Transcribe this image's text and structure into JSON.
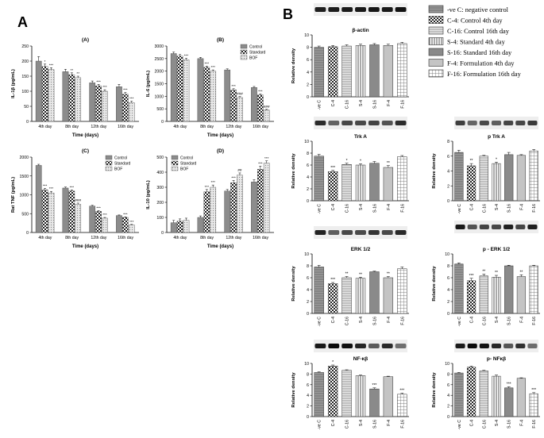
{
  "figure": {
    "panel_a_label": "A",
    "panel_b_label": "B"
  },
  "colors": {
    "control": "#8c8c8c",
    "standard": "#ffffff",
    "bof": "#d9d9d9",
    "axis": "#000000"
  },
  "legend_b": {
    "items": [
      {
        "label": "-ve C: negative control",
        "pattern": "hatch-h"
      },
      {
        "label": "C-4: Control 4th day",
        "pattern": "check"
      },
      {
        "label": "C-16: Control 16th day",
        "pattern": "hatch-h-light"
      },
      {
        "label": "S-4: Standard 4th day",
        "pattern": "vlines"
      },
      {
        "label": "S-16: Standard 16th day",
        "pattern": "gray"
      },
      {
        "label": "F-4: Formulation 4th day",
        "pattern": "lightgray"
      },
      {
        "label": "F-16: Formulation 16th day",
        "pattern": "grid"
      }
    ]
  },
  "chart_data": [
    {
      "id": "A-A",
      "type": "bar",
      "title": "(A)",
      "ylabel": "IL-1β (pg/mL)",
      "xlabel": "Time (days)",
      "categories": [
        "4th day",
        "8th day",
        "12th day",
        "16th day"
      ],
      "ylim": [
        0,
        250
      ],
      "yticks": [
        0,
        50,
        100,
        150,
        200,
        250
      ],
      "series": [
        {
          "name": "Control",
          "values": [
            200,
            165,
            128,
            115
          ],
          "err": [
            15,
            8,
            6,
            8
          ]
        },
        {
          "name": "Standard",
          "values": [
            182,
            155,
            118,
            90
          ],
          "err": [
            8,
            6,
            5,
            6
          ]
        },
        {
          "name": "BOF",
          "values": [
            172,
            145,
            100,
            62
          ],
          "err": [
            6,
            5,
            5,
            5
          ]
        }
      ],
      "annotations": [
        [
          "*",
          "***"
        ],
        [
          "**",
          "**"
        ],
        [
          "***",
          "***"
        ],
        [
          "***",
          "***"
        ]
      ],
      "legend": [
        "Control",
        "Standard",
        "BOF"
      ],
      "legend_pos": "none"
    },
    {
      "id": "A-B",
      "type": "bar",
      "title": "(B)",
      "ylabel": "IL-6 (pg/mL)",
      "xlabel": "Time (days)",
      "categories": [
        "4th day",
        "8th day",
        "12th day",
        "16th day"
      ],
      "ylim": [
        0,
        3000
      ],
      "yticks": [
        0,
        500,
        1000,
        1500,
        2000,
        2500,
        3000
      ],
      "series": [
        {
          "name": "Control",
          "values": [
            2700,
            2500,
            2050,
            1350
          ],
          "err": [
            60,
            50,
            40,
            40
          ]
        },
        {
          "name": "Standard",
          "values": [
            2600,
            2150,
            1250,
            1050
          ],
          "err": [
            60,
            50,
            50,
            40
          ]
        },
        {
          "name": "BOF",
          "values": [
            2450,
            2000,
            950,
            450
          ],
          "err": [
            60,
            50,
            40,
            30
          ]
        }
      ],
      "annotations": [
        [
          "",
          "***"
        ],
        [
          "***",
          "***"
        ],
        [
          "***",
          "###"
        ],
        [
          "***",
          "###"
        ]
      ],
      "legend": [
        "Control",
        "Standard",
        "BOF"
      ],
      "legend_pos": "top-right"
    },
    {
      "id": "A-C",
      "type": "bar",
      "title": "(C)",
      "ylabel": "Rat TNF (pg/mL)",
      "xlabel": "Time (days)",
      "categories": [
        "4th day",
        "8th day",
        "12th day",
        "16th day"
      ],
      "ylim": [
        0,
        2000
      ],
      "yticks": [
        0,
        500,
        1000,
        1500,
        2000
      ],
      "series": [
        {
          "name": "Control",
          "values": [
            1780,
            1180,
            700,
            450
          ],
          "err": [
            30,
            25,
            20,
            15
          ]
        },
        {
          "name": "Standard",
          "values": [
            1130,
            1100,
            560,
            400
          ],
          "err": [
            40,
            30,
            20,
            15
          ]
        },
        {
          "name": "BOF",
          "values": [
            1050,
            750,
            380,
            200
          ],
          "err": [
            40,
            30,
            20,
            15
          ]
        }
      ],
      "annotations": [
        [
          "***",
          "***"
        ],
        [
          "***",
          "###"
        ],
        [
          "***",
          "***"
        ],
        [
          "***",
          "***"
        ]
      ],
      "legend": [
        "Control",
        "Standard",
        "BOF"
      ],
      "legend_pos": "top-right"
    },
    {
      "id": "A-D",
      "type": "bar",
      "title": "(D)",
      "ylabel": "IL-10 (pg/mL)",
      "xlabel": "Time (days)",
      "categories": [
        "4th day",
        "8th day",
        "12th day",
        "16th day"
      ],
      "ylim": [
        0,
        500
      ],
      "yticks": [
        0,
        100,
        200,
        300,
        400,
        500
      ],
      "series": [
        {
          "name": "Control",
          "values": [
            65,
            100,
            275,
            335
          ],
          "err": [
            15,
            10,
            10,
            15
          ]
        },
        {
          "name": "Standard",
          "values": [
            75,
            270,
            330,
            420
          ],
          "err": [
            15,
            15,
            15,
            20
          ]
        },
        {
          "name": "BOF",
          "values": [
            80,
            300,
            380,
            460
          ],
          "err": [
            15,
            15,
            15,
            15
          ]
        }
      ],
      "annotations": [
        [
          "",
          ""
        ],
        [
          "***",
          "***"
        ],
        [
          "***",
          "##"
        ],
        [
          "***",
          "***"
        ]
      ],
      "legend": [
        "Control",
        "Standard",
        "BOF"
      ],
      "legend_pos": "top-left"
    },
    {
      "id": "B-actin",
      "type": "bar",
      "title": "β-actin",
      "ylabel": "Relative density",
      "xlabel": "",
      "categories": [
        "-ve C",
        "C-4",
        "C-16",
        "S-4",
        "S-16",
        "F-4",
        "F-16"
      ],
      "ylim": [
        0,
        10
      ],
      "yticks": [
        0,
        2,
        4,
        6,
        8,
        10
      ],
      "values": [
        8.0,
        8.1,
        8.2,
        8.3,
        8.4,
        8.3,
        8.6
      ],
      "err": [
        0.2,
        0.2,
        0.2,
        0.2,
        0.2,
        0.2,
        0.2
      ],
      "annotations": [
        "",
        "",
        "",
        "",
        "",
        "",
        ""
      ]
    },
    {
      "id": "B-trka",
      "type": "bar",
      "title": "Trk A",
      "ylabel": "Relative density",
      "xlabel": "",
      "categories": [
        "-ve C",
        "C-4",
        "C-16",
        "S-4",
        "S-16",
        "F-4",
        "F-16"
      ],
      "ylim": [
        0,
        10
      ],
      "yticks": [
        0,
        2,
        4,
        6,
        8,
        10
      ],
      "values": [
        7.5,
        4.9,
        6.1,
        6.0,
        6.3,
        5.6,
        7.4
      ],
      "err": [
        0.3,
        0.2,
        0.2,
        0.2,
        0.3,
        0.3,
        0.2
      ],
      "annotations": [
        "",
        "***",
        "*",
        "*",
        "",
        "**",
        ""
      ]
    },
    {
      "id": "B-ptrka",
      "type": "bar",
      "title": "p Trk A",
      "ylabel": "Relative density",
      "xlabel": "",
      "categories": [
        "-ve C",
        "C-4",
        "C-16",
        "S-4",
        "S-16",
        "F-4",
        "F-16"
      ],
      "ylim": [
        0,
        8
      ],
      "yticks": [
        0,
        2,
        4,
        6,
        8
      ],
      "values": [
        6.5,
        4.7,
        6.0,
        5.0,
        6.2,
        6.1,
        6.7
      ],
      "err": [
        0.3,
        0.3,
        0.1,
        0.2,
        0.3,
        0.1,
        0.2
      ],
      "annotations": [
        "",
        "**",
        "",
        "*",
        "",
        "",
        ""
      ]
    },
    {
      "id": "B-erk",
      "type": "bar",
      "title": "ERK 1/2",
      "ylabel": "Relative density",
      "xlabel": "",
      "categories": [
        "-ve C",
        "C-4",
        "C-16",
        "S-4",
        "S-16",
        "F-4",
        "F-16"
      ],
      "ylim": [
        0,
        10
      ],
      "yticks": [
        0,
        2,
        4,
        6,
        8,
        10
      ],
      "values": [
        7.8,
        5.0,
        6.0,
        5.9,
        7.0,
        6.0,
        7.5
      ],
      "err": [
        0.3,
        0.2,
        0.2,
        0.2,
        0.1,
        0.2,
        0.3
      ],
      "annotations": [
        "",
        "***",
        "**",
        "**",
        "",
        "**",
        ""
      ]
    },
    {
      "id": "B-perk",
      "type": "bar",
      "title": "p - ERK 1/2",
      "ylabel": "Relative density",
      "xlabel": "",
      "categories": [
        "-ve C",
        "C-4",
        "C-16",
        "S-4",
        "S-16",
        "F-4",
        "F-16"
      ],
      "ylim": [
        0,
        10
      ],
      "yticks": [
        0,
        2,
        4,
        6,
        8,
        10
      ],
      "values": [
        8.3,
        5.5,
        6.3,
        6.1,
        8.0,
        6.2,
        8.0
      ],
      "err": [
        0.2,
        0.4,
        0.3,
        0.3,
        0.1,
        0.3,
        0.1
      ],
      "annotations": [
        "",
        "***",
        "**",
        "**",
        "",
        "**",
        ""
      ]
    },
    {
      "id": "B-nfkb",
      "type": "bar",
      "title": "NF-κβ",
      "ylabel": "Relative density",
      "xlabel": "",
      "categories": [
        "-ve C",
        "C-4",
        "C-16",
        "S-4",
        "S-16",
        "F-4",
        "F-16"
      ],
      "ylim": [
        0,
        10
      ],
      "yticks": [
        0,
        2,
        4,
        6,
        8,
        10
      ],
      "values": [
        8.3,
        9.5,
        8.7,
        7.7,
        5.2,
        7.5,
        4.2
      ],
      "err": [
        0.1,
        0.2,
        0.1,
        0.1,
        0.2,
        0.1,
        0.2
      ],
      "annotations": [
        "",
        "*",
        "",
        "",
        "***",
        "",
        "***"
      ]
    },
    {
      "id": "B-pnfkb",
      "type": "bar",
      "title": "p- NFκβ",
      "ylabel": "Relative density",
      "xlabel": "",
      "categories": [
        "-ve C",
        "C-4",
        "C-16",
        "S-4",
        "S-16",
        "F-4",
        "F-16"
      ],
      "ylim": [
        0,
        10
      ],
      "yticks": [
        0,
        2,
        4,
        6,
        8,
        10
      ],
      "values": [
        8.2,
        9.3,
        8.6,
        7.6,
        5.4,
        7.2,
        4.3
      ],
      "err": [
        0.1,
        0.2,
        0.1,
        0.2,
        0.2,
        0.1,
        0.2
      ],
      "annotations": [
        "",
        "",
        "",
        "",
        "***",
        "",
        "***"
      ]
    }
  ]
}
